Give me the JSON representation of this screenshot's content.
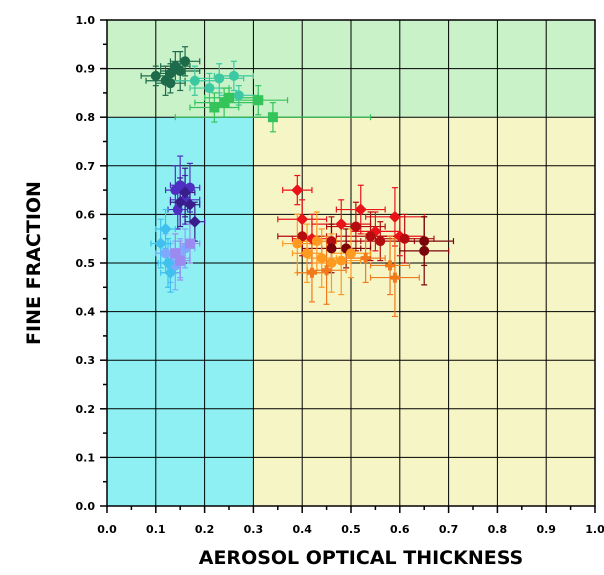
{
  "chart_data": {
    "type": "scatter",
    "title": "",
    "xlabel": "AEROSOL OPTICAL THICKNESS",
    "ylabel": "FINE FRACTION",
    "xlim": [
      0.0,
      1.0
    ],
    "ylim": [
      0.0,
      1.0
    ],
    "xticks": [
      "0.0",
      "0.1",
      "0.2",
      "0.3",
      "0.4",
      "0.5",
      "0.6",
      "0.7",
      "0.8",
      "0.9",
      "1.0"
    ],
    "yticks": [
      "0.0",
      "0.1",
      "0.2",
      "0.3",
      "0.4",
      "0.5",
      "0.6",
      "0.7",
      "0.8",
      "0.9",
      "1.0"
    ],
    "grid": true,
    "legend": "none",
    "regions": [
      {
        "x": [
          0.0,
          1.0
        ],
        "y": [
          0.8,
          1.0
        ],
        "color": "#c9f2c9"
      },
      {
        "x": [
          0.0,
          0.3
        ],
        "y": [
          0.0,
          0.8
        ],
        "color": "#8ef0f2"
      },
      {
        "x": [
          0.3,
          1.0
        ],
        "y": [
          0.0,
          0.8
        ],
        "color": "#f6f5c6"
      }
    ],
    "series": [
      {
        "color": "#1d6b4a",
        "marker": "circle",
        "points": [
          {
            "x": 0.1,
            "y": 0.885,
            "xerr": 0.03,
            "yerr": 0.02
          },
          {
            "x": 0.12,
            "y": 0.875,
            "xerr": 0.04,
            "yerr": 0.03
          },
          {
            "x": 0.13,
            "y": 0.89,
            "xerr": 0.03,
            "yerr": 0.02
          },
          {
            "x": 0.14,
            "y": 0.905,
            "xerr": 0.03,
            "yerr": 0.03
          },
          {
            "x": 0.15,
            "y": 0.895,
            "xerr": 0.04,
            "yerr": 0.04
          },
          {
            "x": 0.16,
            "y": 0.915,
            "xerr": 0.03,
            "yerr": 0.03
          },
          {
            "x": 0.13,
            "y": 0.87,
            "xerr": 0.03,
            "yerr": 0.02
          }
        ]
      },
      {
        "color": "#3cc8a0",
        "marker": "circle",
        "points": [
          {
            "x": 0.18,
            "y": 0.875,
            "xerr": 0.05,
            "yerr": 0.03
          },
          {
            "x": 0.21,
            "y": 0.86,
            "xerr": 0.04,
            "yerr": 0.03
          },
          {
            "x": 0.23,
            "y": 0.88,
            "xerr": 0.05,
            "yerr": 0.03
          },
          {
            "x": 0.26,
            "y": 0.885,
            "xerr": 0.04,
            "yerr": 0.03
          },
          {
            "x": 0.27,
            "y": 0.845,
            "xerr": 0.04,
            "yerr": 0.02
          }
        ]
      },
      {
        "color": "#35c45a",
        "marker": "square",
        "points": [
          {
            "x": 0.22,
            "y": 0.82,
            "xerr": 0.05,
            "yerr": 0.03
          },
          {
            "x": 0.24,
            "y": 0.83,
            "xerr": 0.06,
            "yerr": 0.03
          },
          {
            "x": 0.25,
            "y": 0.84,
            "xerr": 0.05,
            "yerr": 0.02
          },
          {
            "x": 0.31,
            "y": 0.835,
            "xerr": 0.06,
            "yerr": 0.03
          },
          {
            "x": 0.34,
            "y": 0.8,
            "xerr": 0.2,
            "yerr": 0.03
          }
        ]
      },
      {
        "color": "#4f2fc2",
        "marker": "circle",
        "points": [
          {
            "x": 0.14,
            "y": 0.65,
            "xerr": 0.02,
            "yerr": 0.05
          },
          {
            "x": 0.15,
            "y": 0.66,
            "xerr": 0.02,
            "yerr": 0.06
          },
          {
            "x": 0.16,
            "y": 0.63,
            "xerr": 0.03,
            "yerr": 0.05
          },
          {
            "x": 0.17,
            "y": 0.655,
            "xerr": 0.02,
            "yerr": 0.05
          },
          {
            "x": 0.145,
            "y": 0.61,
            "xerr": 0.02,
            "yerr": 0.04
          }
        ]
      },
      {
        "color": "#3a1d8c",
        "marker": "diamond",
        "points": [
          {
            "x": 0.15,
            "y": 0.625,
            "xerr": 0.02,
            "yerr": 0.05
          },
          {
            "x": 0.16,
            "y": 0.645,
            "xerr": 0.02,
            "yerr": 0.05
          },
          {
            "x": 0.17,
            "y": 0.62,
            "xerr": 0.02,
            "yerr": 0.04
          },
          {
            "x": 0.18,
            "y": 0.585,
            "xerr": 0.02,
            "yerr": 0.04
          }
        ]
      },
      {
        "color": "#7fa8ff",
        "marker": "circle",
        "points": [
          {
            "x": 0.12,
            "y": 0.52,
            "xerr": 0.02,
            "yerr": 0.04
          },
          {
            "x": 0.13,
            "y": 0.5,
            "xerr": 0.02,
            "yerr": 0.04
          },
          {
            "x": 0.14,
            "y": 0.495,
            "xerr": 0.02,
            "yerr": 0.05
          },
          {
            "x": 0.15,
            "y": 0.51,
            "xerr": 0.02,
            "yerr": 0.04
          },
          {
            "x": 0.16,
            "y": 0.53,
            "xerr": 0.02,
            "yerr": 0.04
          }
        ]
      },
      {
        "color": "#3fc0ee",
        "marker": "diamond",
        "points": [
          {
            "x": 0.11,
            "y": 0.54,
            "xerr": 0.02,
            "yerr": 0.05
          },
          {
            "x": 0.12,
            "y": 0.57,
            "xerr": 0.02,
            "yerr": 0.04
          },
          {
            "x": 0.125,
            "y": 0.5,
            "xerr": 0.02,
            "yerr": 0.05
          },
          {
            "x": 0.13,
            "y": 0.48,
            "xerr": 0.02,
            "yerr": 0.04
          }
        ]
      },
      {
        "color": "#9d8af0",
        "marker": "square",
        "points": [
          {
            "x": 0.14,
            "y": 0.52,
            "xerr": 0.02,
            "yerr": 0.04
          },
          {
            "x": 0.15,
            "y": 0.505,
            "xerr": 0.02,
            "yerr": 0.04
          },
          {
            "x": 0.17,
            "y": 0.54,
            "xerr": 0.02,
            "yerr": 0.04
          }
        ]
      },
      {
        "color": "#e8141a",
        "marker": "diamond",
        "points": [
          {
            "x": 0.39,
            "y": 0.65,
            "xerr": 0.03,
            "yerr": 0.03
          },
          {
            "x": 0.4,
            "y": 0.59,
            "xerr": 0.05,
            "yerr": 0.04
          },
          {
            "x": 0.42,
            "y": 0.55,
            "xerr": 0.04,
            "yerr": 0.05
          },
          {
            "x": 0.48,
            "y": 0.58,
            "xerr": 0.06,
            "yerr": 0.05
          },
          {
            "x": 0.52,
            "y": 0.61,
            "xerr": 0.05,
            "yerr": 0.05
          },
          {
            "x": 0.55,
            "y": 0.565,
            "xerr": 0.05,
            "yerr": 0.04
          },
          {
            "x": 0.59,
            "y": 0.595,
            "xerr": 0.06,
            "yerr": 0.06
          },
          {
            "x": 0.6,
            "y": 0.555,
            "xerr": 0.05,
            "yerr": 0.04
          }
        ]
      },
      {
        "color": "#b30d10",
        "marker": "circle",
        "points": [
          {
            "x": 0.4,
            "y": 0.555,
            "xerr": 0.05,
            "yerr": 0.04
          },
          {
            "x": 0.46,
            "y": 0.545,
            "xerr": 0.06,
            "yerr": 0.05
          },
          {
            "x": 0.51,
            "y": 0.575,
            "xerr": 0.06,
            "yerr": 0.05
          },
          {
            "x": 0.54,
            "y": 0.555,
            "xerr": 0.07,
            "yerr": 0.05
          },
          {
            "x": 0.56,
            "y": 0.545,
            "xerr": 0.07,
            "yerr": 0.04
          },
          {
            "x": 0.61,
            "y": 0.55,
            "xerr": 0.06,
            "yerr": 0.05
          }
        ]
      },
      {
        "color": "#7a0408",
        "marker": "circle",
        "points": [
          {
            "x": 0.46,
            "y": 0.53,
            "xerr": 0.06,
            "yerr": 0.05
          },
          {
            "x": 0.49,
            "y": 0.53,
            "xerr": 0.05,
            "yerr": 0.04
          },
          {
            "x": 0.65,
            "y": 0.545,
            "xerr": 0.06,
            "yerr": 0.05
          },
          {
            "x": 0.65,
            "y": 0.525,
            "xerr": 0.05,
            "yerr": 0.07
          }
        ]
      },
      {
        "color": "#ff9a20",
        "marker": "circle",
        "points": [
          {
            "x": 0.39,
            "y": 0.54,
            "xerr": 0.03,
            "yerr": 0.06
          },
          {
            "x": 0.41,
            "y": 0.52,
            "xerr": 0.03,
            "yerr": 0.06
          },
          {
            "x": 0.43,
            "y": 0.545,
            "xerr": 0.04,
            "yerr": 0.06
          },
          {
            "x": 0.44,
            "y": 0.51,
            "xerr": 0.03,
            "yerr": 0.06
          },
          {
            "x": 0.46,
            "y": 0.5,
            "xerr": 0.04,
            "yerr": 0.06
          },
          {
            "x": 0.48,
            "y": 0.505,
            "xerr": 0.04,
            "yerr": 0.07
          },
          {
            "x": 0.5,
            "y": 0.52,
            "xerr": 0.04,
            "yerr": 0.05
          }
        ]
      },
      {
        "color": "#f07a1c",
        "marker": "cross",
        "points": [
          {
            "x": 0.42,
            "y": 0.48,
            "xerr": 0.03,
            "yerr": 0.06
          },
          {
            "x": 0.45,
            "y": 0.485,
            "xerr": 0.04,
            "yerr": 0.07
          },
          {
            "x": 0.53,
            "y": 0.51,
            "xerr": 0.04,
            "yerr": 0.05
          },
          {
            "x": 0.58,
            "y": 0.495,
            "xerr": 0.04,
            "yerr": 0.06
          },
          {
            "x": 0.59,
            "y": 0.47,
            "xerr": 0.05,
            "yerr": 0.08
          }
        ]
      }
    ]
  }
}
